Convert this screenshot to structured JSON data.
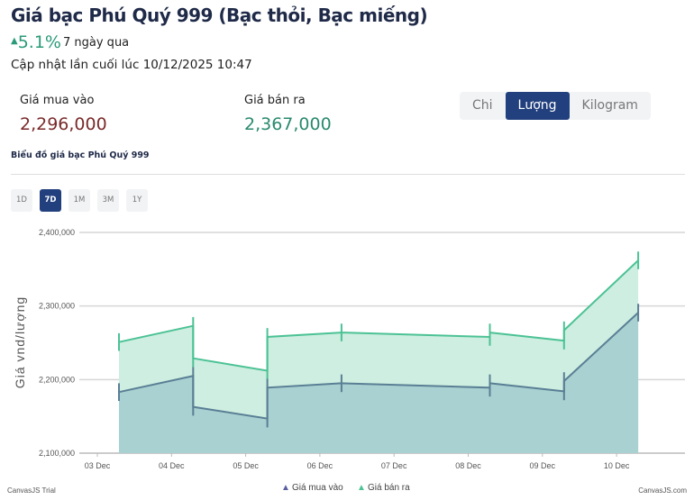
{
  "header": {
    "title": "Giá bạc Phú Quý 999 (Bạc thỏi, Bạc miếng)",
    "change": "5.1%",
    "change_label": "7 ngày qua",
    "updated": "Cập nhật lần cuối lúc 10/12/2025 10:47"
  },
  "prices": {
    "buy_label": "Giá mua vào",
    "buy_value": "2,296,000",
    "sell_label": "Giá bán ra",
    "sell_value": "2,367,000"
  },
  "units": [
    "Chi",
    "Lượng",
    "Kilogram"
  ],
  "active_unit": "Lượng",
  "chart_title": "Biểu đồ giá bạc Phú Quý 999",
  "ranges": [
    "1D",
    "7D",
    "1M",
    "3M",
    "1Y"
  ],
  "active_range": "7D",
  "colors": {
    "buy": "#5a7f95",
    "buy_fill": "#a9d1d1",
    "sell": "#4cc295",
    "sell_fill": "#cdeee0",
    "up": "#2a9a78",
    "buy_text": "#7a2a2a",
    "sell_text": "#2a8a6e",
    "active": "#22407e"
  },
  "footer": {
    "left": "CanvasJS Trial",
    "right": "CanvasJS.com"
  },
  "chart_data": {
    "type": "area",
    "ylabel": "Giá vnd/lượng",
    "ylim": [
      2100000,
      2400000
    ],
    "yticks": [
      "2,100,000",
      "2,200,000",
      "2,300,000",
      "2,400,000"
    ],
    "xticks": [
      "03 Dec",
      "04 Dec",
      "05 Dec",
      "06 Dec",
      "07 Dec",
      "08 Dec",
      "09 Dec",
      "10 Dec"
    ],
    "grid": true,
    "legend": "bottom",
    "series": [
      {
        "name": "Giá mua vào",
        "points": [
          [
            "2025-12-03T07:00",
            2183000
          ],
          [
            "2025-12-04T07:00",
            2205000
          ],
          [
            "2025-12-04T07:00",
            2163000
          ],
          [
            "2025-12-05T07:00",
            2147000
          ],
          [
            "2025-12-05T07:00",
            2189000
          ],
          [
            "2025-12-06T07:00",
            2195000
          ],
          [
            "2025-12-08T07:00",
            2189000
          ],
          [
            "2025-12-08T07:00",
            2195000
          ],
          [
            "2025-12-09T07:00",
            2184000
          ],
          [
            "2025-12-09T07:00",
            2198000
          ],
          [
            "2025-12-10T07:00",
            2291000
          ]
        ]
      },
      {
        "name": "Giá bán ra",
        "points": [
          [
            "2025-12-03T07:00",
            2251000
          ],
          [
            "2025-12-04T07:00",
            2273000
          ],
          [
            "2025-12-04T07:00",
            2229000
          ],
          [
            "2025-12-05T07:00",
            2212000
          ],
          [
            "2025-12-05T07:00",
            2258000
          ],
          [
            "2025-12-06T07:00",
            2264000
          ],
          [
            "2025-12-08T07:00",
            2258000
          ],
          [
            "2025-12-08T07:00",
            2264000
          ],
          [
            "2025-12-09T07:00",
            2253000
          ],
          [
            "2025-12-09T07:00",
            2267000
          ],
          [
            "2025-12-10T07:00",
            2362000
          ]
        ]
      }
    ]
  }
}
